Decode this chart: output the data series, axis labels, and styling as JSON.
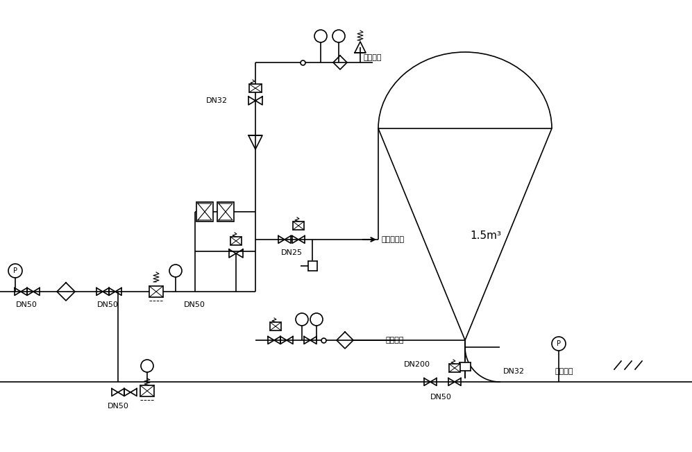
{
  "bg": "#ffffff",
  "lc": "#000000",
  "lw": 1.2,
  "tank_label": "1.5m³",
  "top_air": "顶部进气",
  "fluidize": "流态化气路",
  "transport": "输送气路",
  "tank_supply": "储罐补气",
  "dn32": "DN32",
  "dn50": "DN50",
  "dn25": "DN25",
  "dn200": "DN200"
}
